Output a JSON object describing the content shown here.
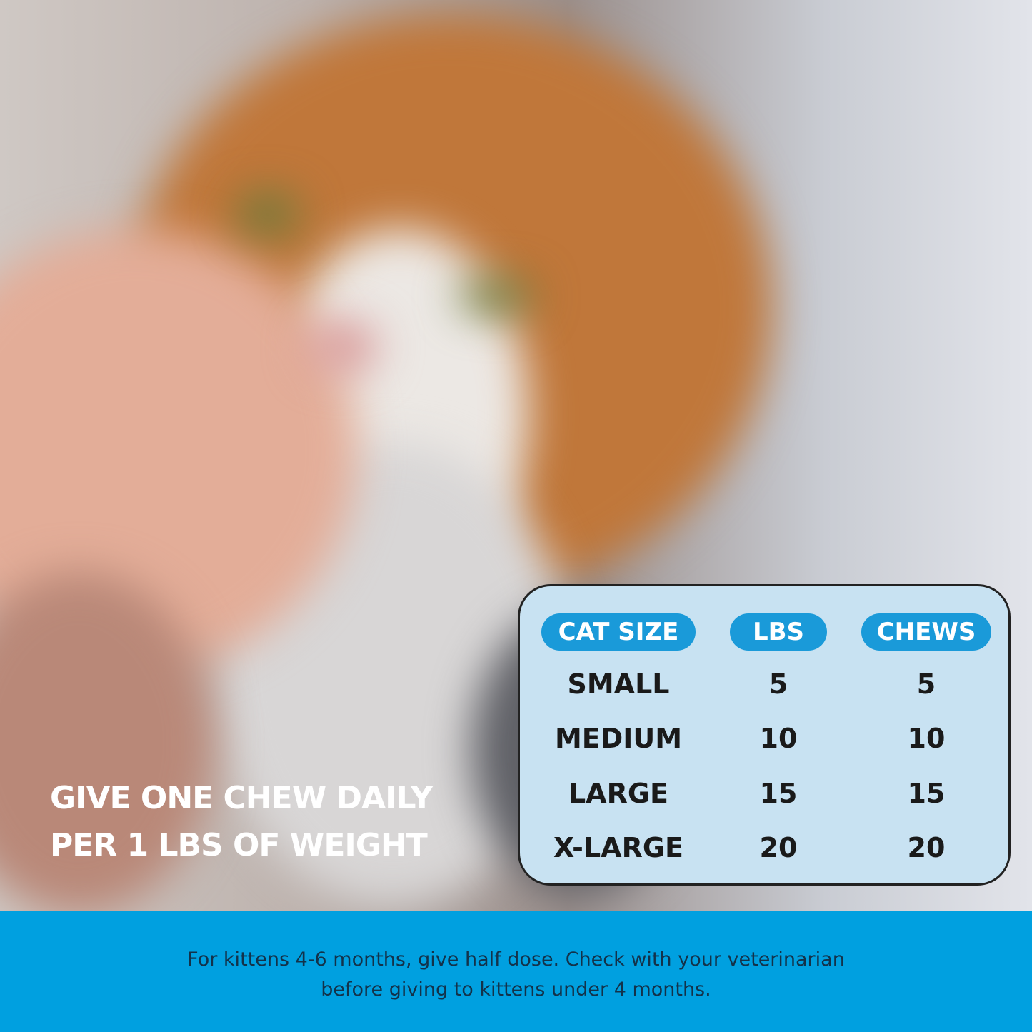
{
  "headline": {
    "line1": "GIVE ONE CHEW DAILY",
    "line2": "PER 1 LBS OF WEIGHT"
  },
  "dosage_table": {
    "headers": [
      "CAT SIZE",
      "LBS",
      "CHEWS"
    ],
    "rows": [
      [
        "SMALL",
        "5",
        "5"
      ],
      [
        "MEDIUM",
        "10",
        "10"
      ],
      [
        "LARGE",
        "15",
        "15"
      ],
      [
        "X-LARGE",
        "20",
        "20"
      ]
    ]
  },
  "footer": {
    "line1": "For kittens 4-6 months, give half dose. Check with your veterinarian",
    "line2": "before giving to kittens under 4 months."
  },
  "colors": {
    "accent": "#1a9ad9",
    "banner": "#00a0e0",
    "card": "#c8e2f2"
  }
}
